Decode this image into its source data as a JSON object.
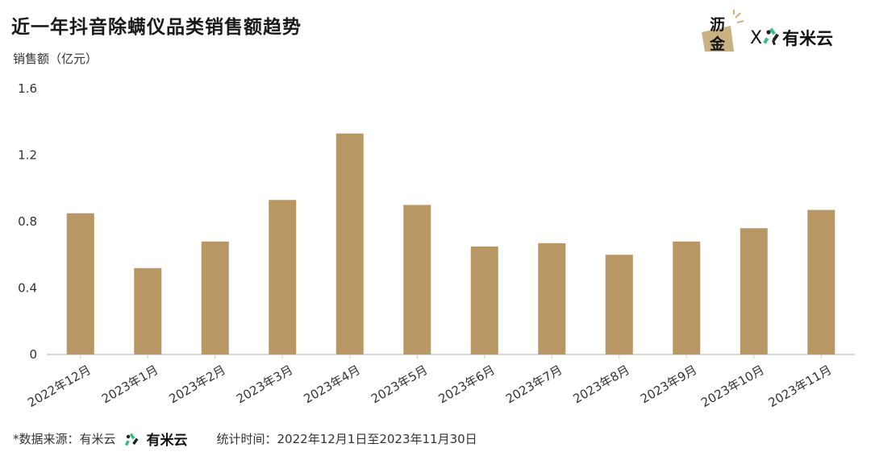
{
  "header": {
    "title": "近一年抖音除螨仪品类销售额趋势"
  },
  "brand": {
    "left_logo_text": "沥金",
    "separator": "X",
    "right_logo_text": "有米云"
  },
  "footer": {
    "source_label": "*数据来源：有米云",
    "source_logo_text": "有米云",
    "stat_period": "统计时间：2022年12月1日至2023年11月30日"
  },
  "colors": {
    "bar": "#B89764",
    "axis": "#cccccc",
    "text": "#333333"
  },
  "chart_data": {
    "type": "bar",
    "title": "近一年抖音除螨仪品类销售额趋势",
    "ylabel": "销售额（亿元）",
    "xlabel": "",
    "categories": [
      "2022年12月",
      "2023年1月",
      "2023年2月",
      "2023年3月",
      "2023年4月",
      "2023年5月",
      "2023年6月",
      "2023年7月",
      "2023年8月",
      "2023年9月",
      "2023年10月",
      "2023年11月"
    ],
    "values": [
      0.85,
      0.52,
      0.68,
      0.93,
      1.33,
      0.9,
      0.65,
      0.67,
      0.6,
      0.68,
      0.76,
      0.87
    ],
    "ylim": [
      0,
      1.6
    ],
    "yticks": [
      "0",
      "0.4",
      "0.8",
      "1.2",
      "1.6"
    ],
    "grid": false,
    "legend": "none"
  }
}
